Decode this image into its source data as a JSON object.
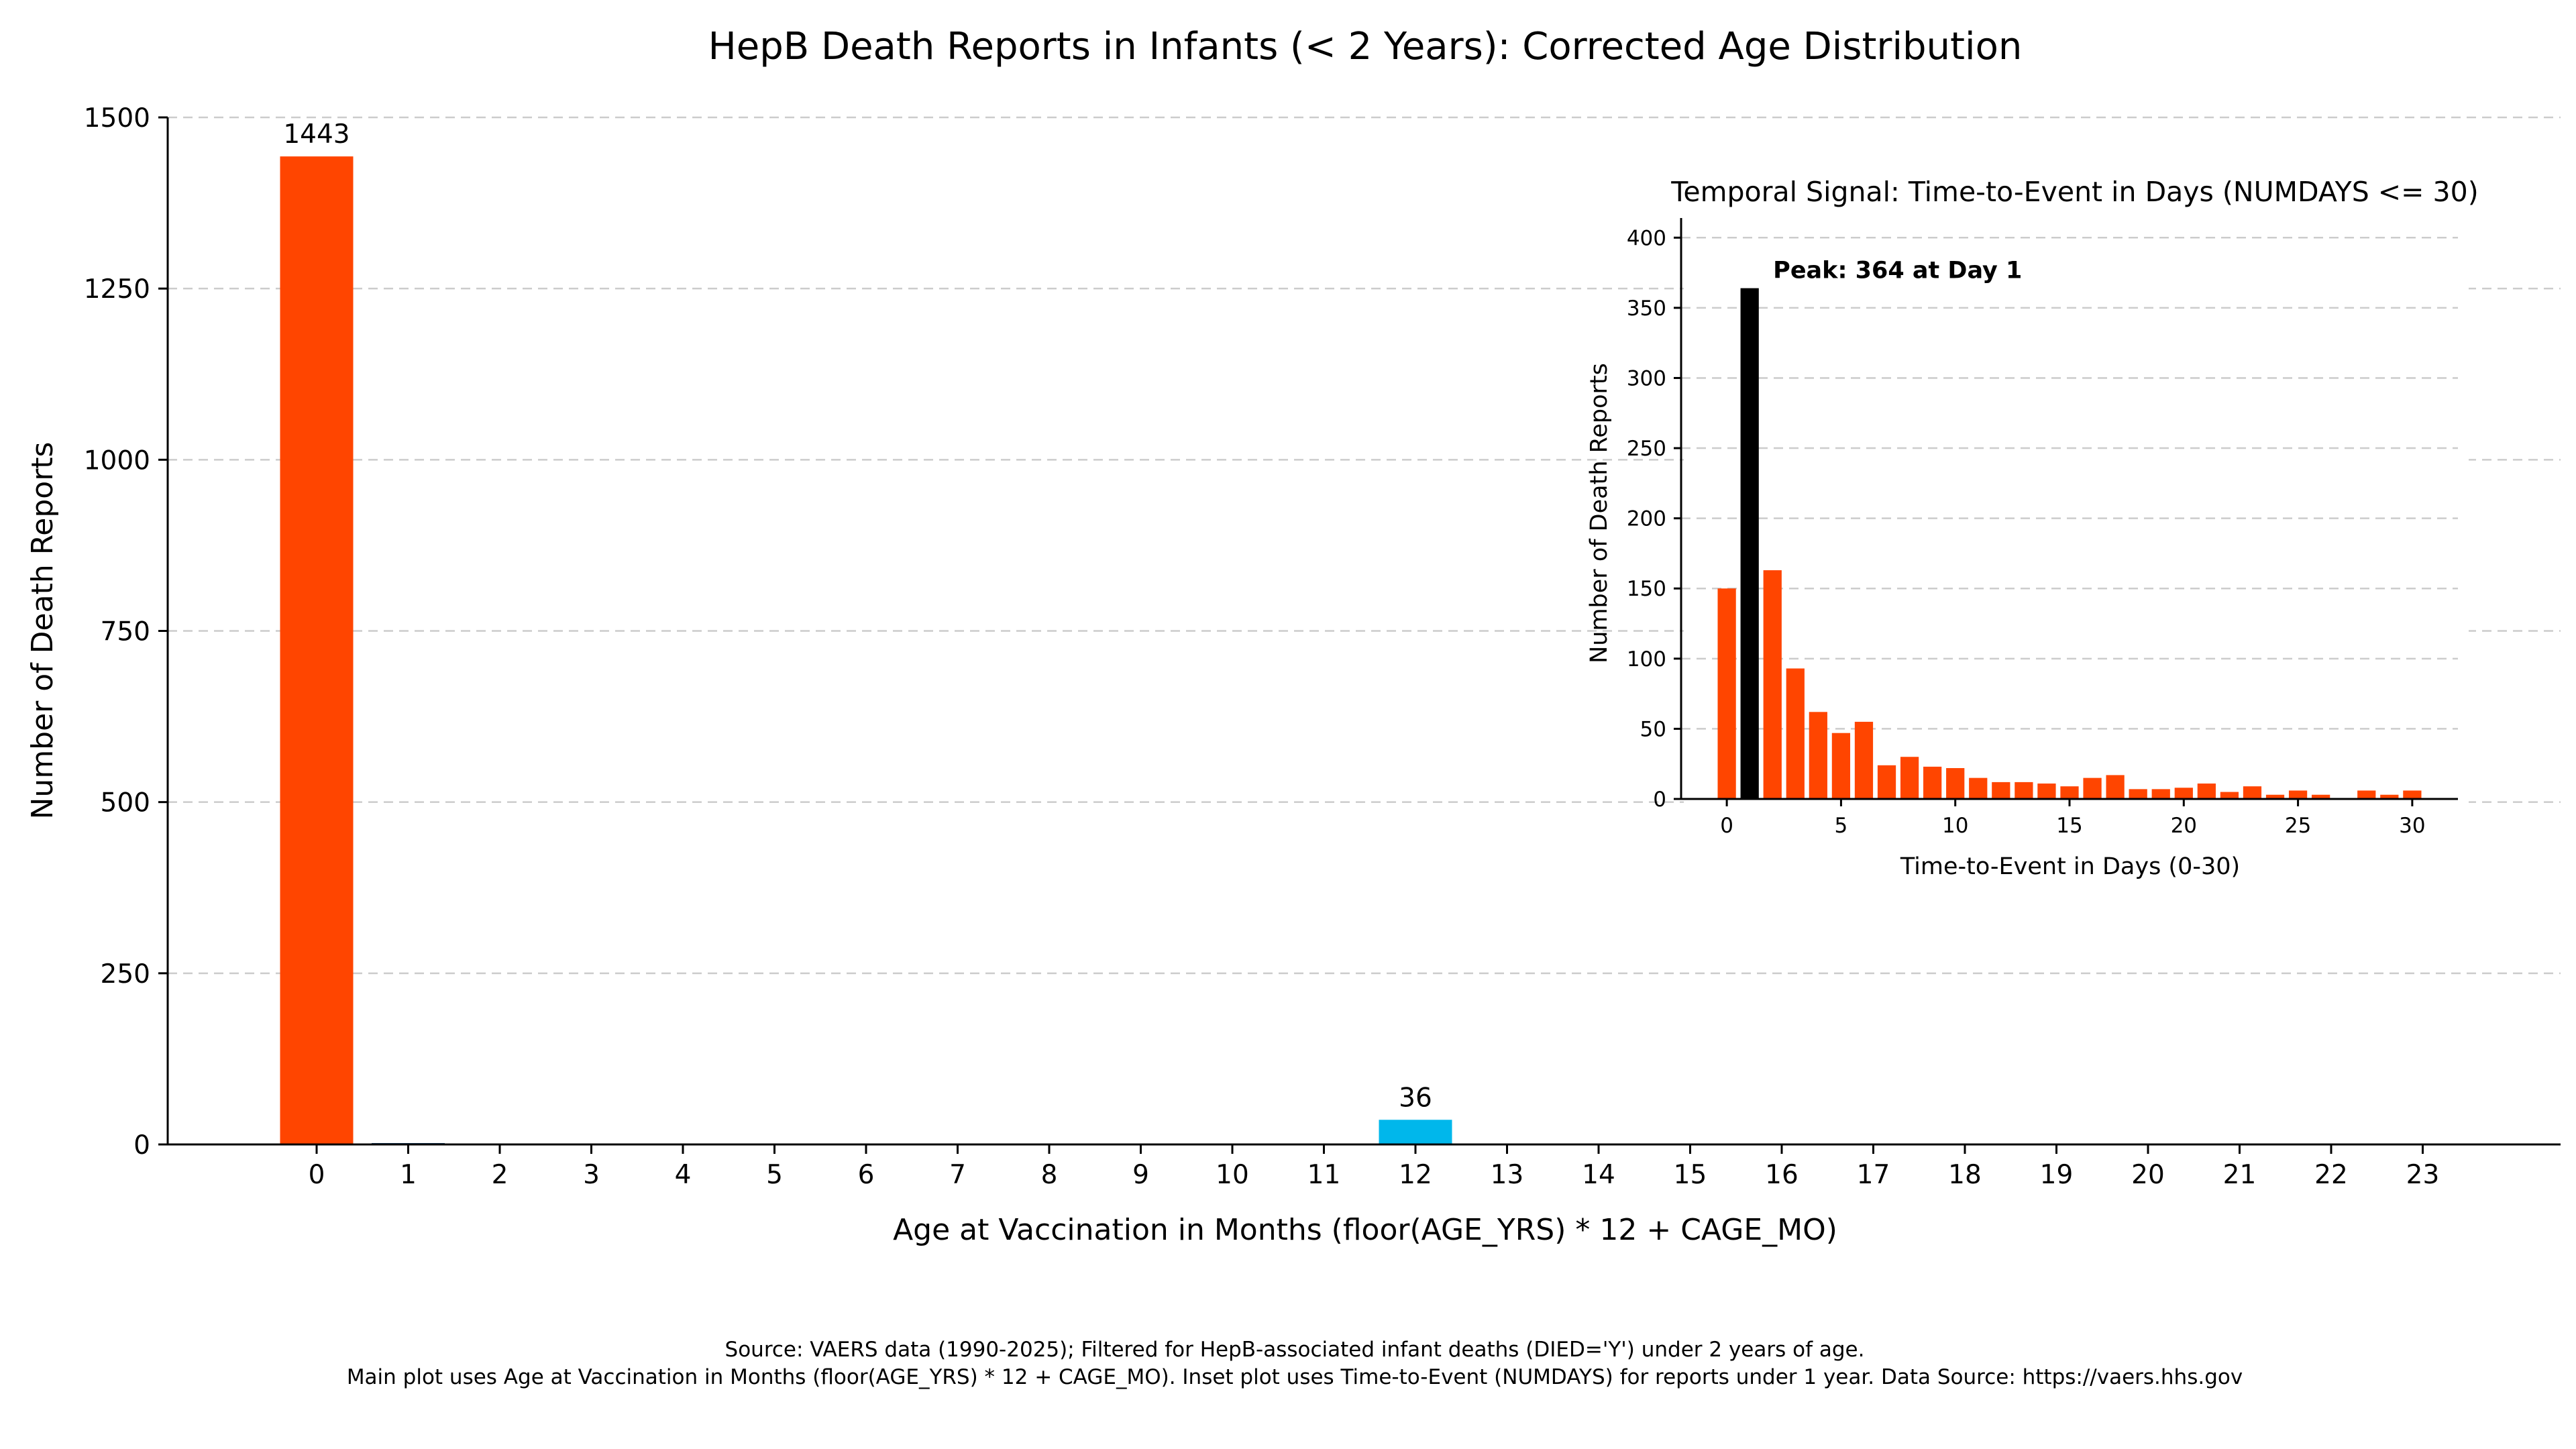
{
  "chart_data": [
    {
      "type": "bar",
      "title": "HepB Death Reports in Infants (< 2 Years): Corrected Age Distribution",
      "xlabel": "Age at Vaccination in Months (floor(AGE_YRS) * 12 + CAGE_MO)",
      "ylabel": "Number of Death Reports",
      "categories": [
        "0",
        "1",
        "2",
        "3",
        "4",
        "5",
        "6",
        "7",
        "8",
        "9",
        "10",
        "11",
        "12",
        "13",
        "14",
        "15",
        "16",
        "17",
        "18",
        "19",
        "20",
        "21",
        "22",
        "23"
      ],
      "values": [
        1443,
        2,
        0,
        0,
        0,
        0,
        0,
        0,
        0,
        0,
        0,
        0,
        36,
        0,
        0,
        0,
        0,
        0,
        0,
        0,
        0,
        0,
        0,
        0
      ],
      "bar_colors": [
        "#ff4500",
        "#0d3b66",
        "#ff4500",
        "#ff4500",
        "#ff4500",
        "#ff4500",
        "#ff4500",
        "#ff4500",
        "#ff4500",
        "#ff4500",
        "#ff4500",
        "#ff4500",
        "#00b7eb",
        "#ff4500",
        "#ff4500",
        "#ff4500",
        "#ff4500",
        "#ff4500",
        "#ff4500",
        "#ff4500",
        "#ff4500",
        "#ff4500",
        "#ff4500",
        "#ff4500"
      ],
      "data_labels": [
        {
          "index": 0,
          "text": "1443"
        },
        {
          "index": 12,
          "text": "36"
        }
      ],
      "ylim": [
        0,
        1500
      ],
      "yticks": [
        0,
        250,
        500,
        750,
        1000,
        1250,
        1500
      ],
      "grid": "y"
    },
    {
      "type": "bar",
      "title": "Temporal Signal: Time-to-Event in Days (NUMDAYS <= 30)",
      "xlabel": "Time-to-Event in Days (0-30)",
      "ylabel": "Number of Death Reports",
      "x": [
        0,
        1,
        2,
        3,
        4,
        5,
        6,
        7,
        8,
        9,
        10,
        11,
        12,
        13,
        14,
        15,
        16,
        17,
        18,
        19,
        20,
        21,
        22,
        23,
        24,
        25,
        26,
        27,
        28,
        29,
        30
      ],
      "values": [
        150,
        364,
        163,
        93,
        62,
        47,
        55,
        24,
        30,
        23,
        22,
        15,
        12,
        12,
        11,
        9,
        15,
        17,
        7,
        7,
        8,
        11,
        5,
        9,
        3,
        6,
        3,
        0,
        6,
        3,
        6
      ],
      "highlight_index": 1,
      "color": "#ff4500",
      "highlight_color": "#000000",
      "annotation": "Peak: 364 at Day 1",
      "xlim": [
        -2,
        32
      ],
      "xticks": [
        0,
        5,
        10,
        15,
        20,
        25,
        30
      ],
      "ylim": [
        0,
        414
      ],
      "yticks": [
        0,
        50,
        100,
        150,
        200,
        250,
        300,
        350,
        400
      ],
      "grid": "y"
    }
  ],
  "footnote": {
    "line1": "Source: VAERS data (1990-2025); Filtered for HepB-associated infant deaths (DIED='Y') under 2 years of age.",
    "line2": "Main plot uses Age at Vaccination in Months (floor(AGE_YRS) * 12 + CAGE_MO). Inset plot uses Time-to-Event (NUMDAYS) for reports under 1 year. Data Source: https://vaers.hhs.gov"
  }
}
